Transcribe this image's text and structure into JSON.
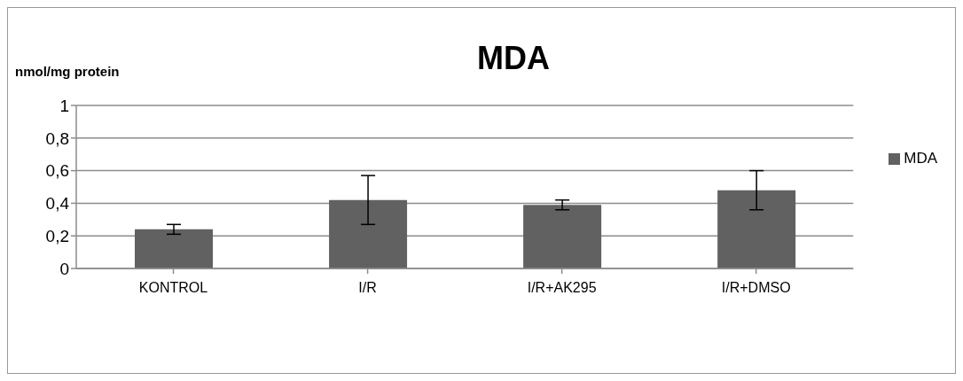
{
  "chart_data": {
    "type": "bar",
    "title": "MDA",
    "ylabel": "nmol/mg protein",
    "categories": [
      "KONTROL",
      "I/R",
      "I/R+AK295",
      "I/R+DMSO"
    ],
    "series": [
      {
        "name": "MDA",
        "color": "#616161",
        "values": [
          0.24,
          0.42,
          0.39,
          0.48
        ],
        "errors": [
          0.03,
          0.15,
          0.03,
          0.12
        ]
      }
    ],
    "ylim": [
      0,
      1
    ],
    "yticks": [
      0,
      {
        "value": 0.2,
        "label": "0,2"
      },
      {
        "value": 0.4,
        "label": "0,4"
      },
      {
        "value": 0.6,
        "label": "0,6"
      },
      {
        "value": 0.8,
        "label": "0,8"
      },
      1
    ],
    "grid": "y",
    "legend": "right"
  }
}
